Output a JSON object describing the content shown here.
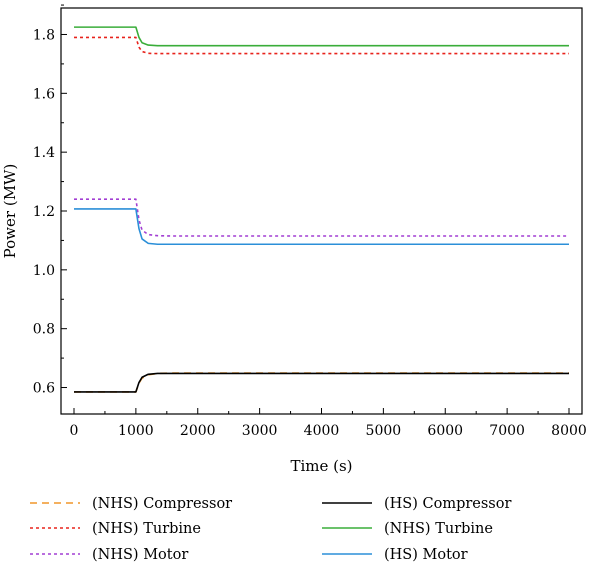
{
  "chart_data": {
    "type": "line",
    "title": "",
    "xlabel": "Time (s)",
    "ylabel": "Power (MW)",
    "xlim": [
      0,
      8000
    ],
    "ylim": [
      0.51,
      1.89
    ],
    "xticks": [
      0,
      1000,
      2000,
      3000,
      4000,
      5000,
      6000,
      7000,
      8000
    ],
    "xtick_labels": [
      "0",
      "1000",
      "2000",
      "3000",
      "4000",
      "5000",
      "6000",
      "7000",
      "8000"
    ],
    "yticks": [
      0.6,
      0.8,
      1.0,
      1.2,
      1.4,
      1.6,
      1.8
    ],
    "ytick_labels": [
      "0.6",
      "0.8",
      "1.0",
      "1.2",
      "1.4",
      "1.6",
      "1.8"
    ],
    "grid": false,
    "legend_position": "bottom",
    "series": [
      {
        "name": "(NHS) Compressor",
        "color": "#f0962a",
        "style": "dashed",
        "x": [
          0,
          1000,
          1050,
          1100,
          1200,
          1350,
          1600,
          8000
        ],
        "y": [
          0.585,
          0.585,
          0.615,
          0.632,
          0.643,
          0.648,
          0.649,
          0.649
        ]
      },
      {
        "name": "(NHS) Turbine",
        "color": "#e8231c",
        "style": "dotted",
        "x": [
          0,
          1000,
          1050,
          1100,
          1200,
          1350,
          1600,
          8000
        ],
        "y": [
          1.79,
          1.79,
          1.757,
          1.742,
          1.736,
          1.735,
          1.735,
          1.735
        ]
      },
      {
        "name": "(NHS) Motor",
        "color": "#a23fd3",
        "style": "dotted",
        "x": [
          0,
          1000,
          1050,
          1100,
          1200,
          1350,
          1600,
          8000
        ],
        "y": [
          1.24,
          1.24,
          1.17,
          1.135,
          1.12,
          1.116,
          1.115,
          1.115
        ]
      },
      {
        "name": "(HS) Compressor",
        "color": "#000000",
        "style": "solid",
        "x": [
          0,
          1000,
          1050,
          1100,
          1200,
          1350,
          1600,
          8000
        ],
        "y": [
          0.585,
          0.585,
          0.617,
          0.635,
          0.645,
          0.648,
          0.648,
          0.648
        ]
      },
      {
        "name": "(NHS) Turbine",
        "color": "#3aad3a",
        "style": "solid",
        "x": [
          0,
          1000,
          1050,
          1100,
          1200,
          1350,
          1600,
          8000
        ],
        "y": [
          1.825,
          1.825,
          1.79,
          1.772,
          1.764,
          1.762,
          1.762,
          1.762
        ]
      },
      {
        "name": "(HS) Motor",
        "color": "#2b8fd8",
        "style": "solid",
        "x": [
          0,
          1000,
          1050,
          1100,
          1200,
          1350,
          1600,
          8000
        ],
        "y": [
          1.207,
          1.207,
          1.14,
          1.105,
          1.09,
          1.087,
          1.087,
          1.087
        ]
      }
    ],
    "legend_order": [
      0,
      3,
      1,
      4,
      2,
      5
    ]
  }
}
